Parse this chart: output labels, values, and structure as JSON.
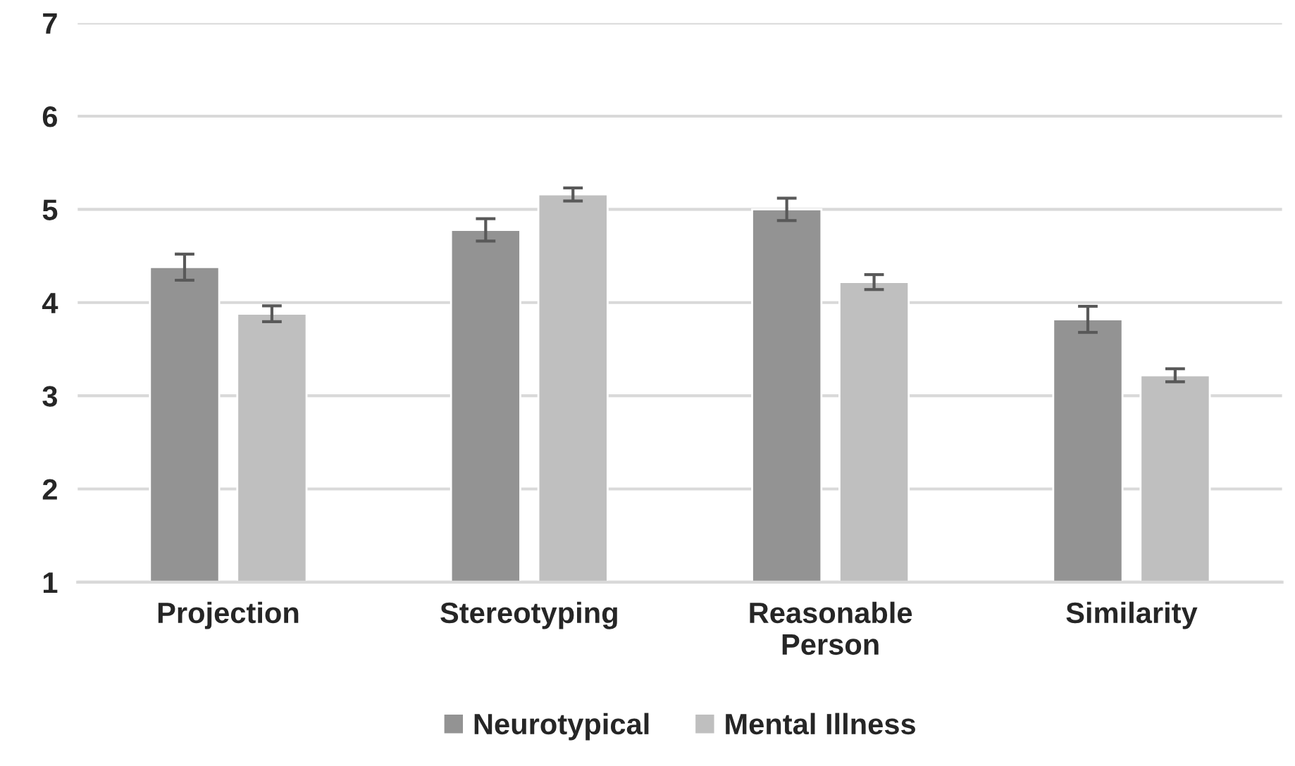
{
  "chart_data": {
    "type": "bar",
    "categories": [
      "Projection",
      "Stereotyping",
      "Reasonable\nPerson",
      "Similarity"
    ],
    "series": [
      {
        "name": "Neurotypical",
        "color": "#939393",
        "values": [
          4.38,
          4.78,
          5.0,
          3.82
        ],
        "errors": [
          0.14,
          0.12,
          0.12,
          0.14
        ]
      },
      {
        "name": "Mental Illness",
        "color": "#bfbfbf",
        "values": [
          3.88,
          5.16,
          4.22,
          3.22
        ],
        "errors": [
          0.085,
          0.07,
          0.08,
          0.07
        ]
      }
    ],
    "ylim": [
      1,
      7
    ],
    "yticks": [
      1,
      2,
      3,
      4,
      5,
      6,
      7
    ],
    "grid": "y",
    "legend": "bottom"
  }
}
